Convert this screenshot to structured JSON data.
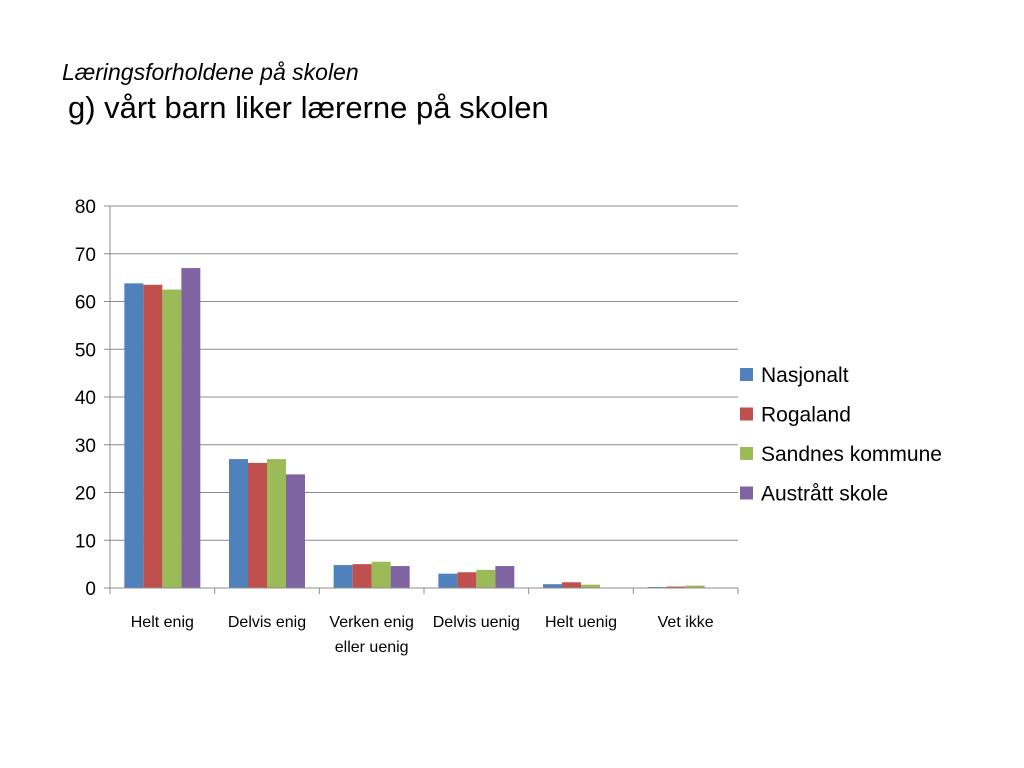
{
  "slide": {
    "title_line1": "Læringsforholdene på skolen",
    "title_line2": "g) vårt barn liker lærerne på skolen"
  },
  "chart_data": {
    "type": "bar",
    "title": "",
    "xlabel": "",
    "ylabel": "",
    "ylim": [
      0,
      80
    ],
    "yticks": [
      0,
      10,
      20,
      30,
      40,
      50,
      60,
      70,
      80
    ],
    "grid": true,
    "legend_position": "right",
    "categories": [
      [
        "Helt enig"
      ],
      [
        "Delvis enig"
      ],
      [
        "Verken enig",
        "eller uenig"
      ],
      [
        "Delvis uenig"
      ],
      [
        "Helt uenig"
      ],
      [
        "Vet ikke"
      ]
    ],
    "series": [
      {
        "name": "Nasjonalt",
        "color": "#4F81BD",
        "values": [
          63.8,
          27.0,
          4.8,
          3.0,
          0.8,
          0.2
        ]
      },
      {
        "name": "Rogaland",
        "color": "#C0504D",
        "values": [
          63.5,
          26.2,
          5.0,
          3.3,
          1.2,
          0.3
        ]
      },
      {
        "name": "Sandnes kommune",
        "color": "#9BBB59",
        "values": [
          62.5,
          27.0,
          5.5,
          3.8,
          0.7,
          0.5
        ]
      },
      {
        "name": "Austrått skole",
        "color": "#8064A2",
        "values": [
          67.0,
          23.8,
          4.6,
          4.6,
          0.0,
          0.0
        ]
      }
    ]
  }
}
